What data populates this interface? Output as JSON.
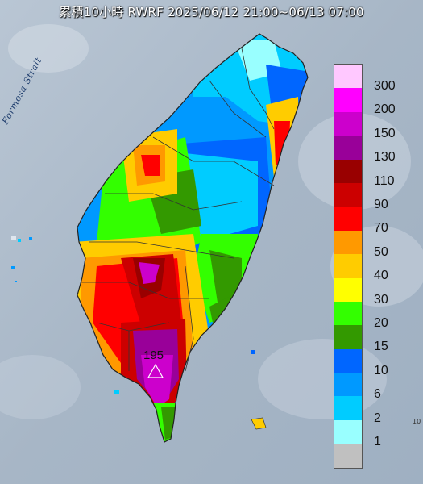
{
  "title": "累積10小時 RWRF 2025/06/12 21:00~06/13 07:00",
  "strait_label": "Formosa Strait",
  "max_label": "195",
  "edge_mark": "10",
  "legend": [
    {
      "label": "300",
      "color": "#ffc8ff"
    },
    {
      "label": "200",
      "color": "#ff00ff"
    },
    {
      "label": "150",
      "color": "#cc00cc"
    },
    {
      "label": "130",
      "color": "#990099"
    },
    {
      "label": "110",
      "color": "#990000"
    },
    {
      "label": "90",
      "color": "#cc0000"
    },
    {
      "label": "70",
      "color": "#ff0000"
    },
    {
      "label": "50",
      "color": "#ff9900"
    },
    {
      "label": "40",
      "color": "#ffcc00"
    },
    {
      "label": "30",
      "color": "#ffff00"
    },
    {
      "label": "20",
      "color": "#33ff00"
    },
    {
      "label": "15",
      "color": "#339900"
    },
    {
      "label": "10",
      "color": "#0066ff"
    },
    {
      "label": "6",
      "color": "#0099ff"
    },
    {
      "label": "2",
      "color": "#00ccff"
    },
    {
      "label": "1",
      "color": "#99ffff"
    },
    {
      "label": "",
      "color": "#c0c0c0"
    }
  ]
}
